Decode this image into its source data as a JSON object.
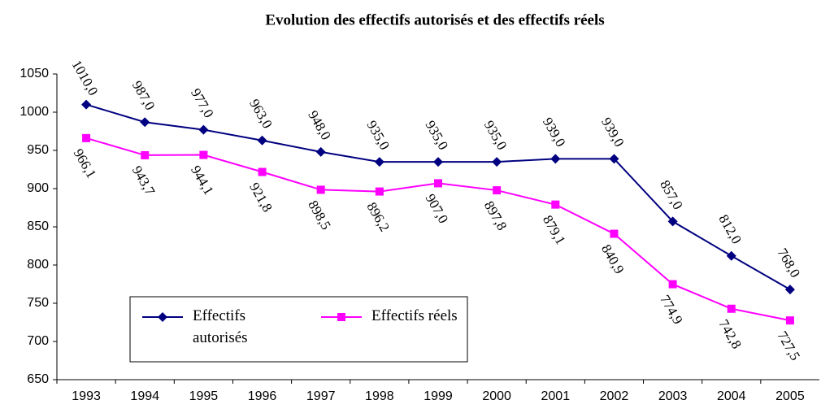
{
  "chart_data": {
    "type": "line",
    "title": "Evolution des effectifs autorisés et des effectifs réels",
    "categories": [
      "1993",
      "1994",
      "1995",
      "1996",
      "1997",
      "1998",
      "1999",
      "2000",
      "2001",
      "2002",
      "2003",
      "2004",
      "2005"
    ],
    "series": [
      {
        "name": "Effectifs autorisés",
        "color": "#000080",
        "marker": "diamond",
        "values": [
          1010,
          987,
          977,
          963,
          948,
          935,
          935,
          935,
          939,
          939,
          857,
          812,
          768
        ],
        "value_labels": [
          "1010,0",
          "987,0",
          "977,0",
          "963,0",
          "948,0",
          "935,0",
          "935,0",
          "935,0",
          "939,0",
          "939,0",
          "857,0",
          "812,0",
          "768,0"
        ]
      },
      {
        "name": "Effectifs réels",
        "color": "#ff00ff",
        "marker": "square",
        "values": [
          966.1,
          943.7,
          944.1,
          921.8,
          898.5,
          896.2,
          907.0,
          897.8,
          879.1,
          840.9,
          774.9,
          742.8,
          727.5
        ],
        "value_labels": [
          "966,1",
          "943,7",
          "944,1",
          "921,8",
          "898,5",
          "896,2",
          "907,0",
          "897,8",
          "879,1",
          "840,9",
          "774,9",
          "742,8",
          "727,5"
        ]
      }
    ],
    "ylim": [
      650,
      1050
    ],
    "yticks": [
      650,
      700,
      750,
      800,
      850,
      900,
      950,
      1000,
      1050
    ],
    "grid": false
  }
}
